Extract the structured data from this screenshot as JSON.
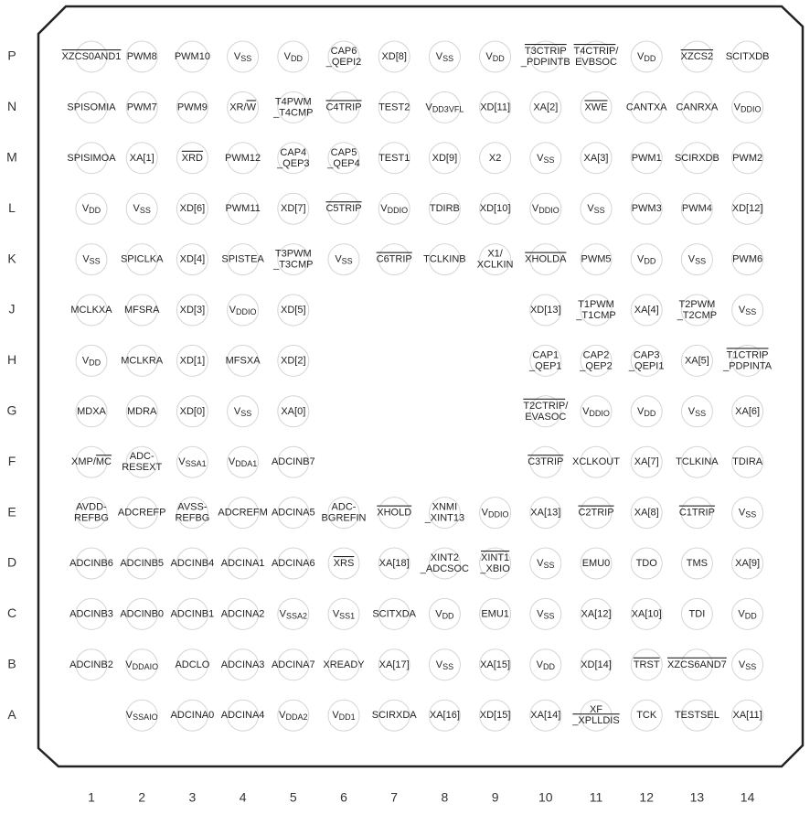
{
  "rows": [
    "P",
    "N",
    "M",
    "L",
    "K",
    "J",
    "H",
    "G",
    "F",
    "E",
    "D",
    "C",
    "B",
    "A"
  ],
  "columns": [
    "1",
    "2",
    "3",
    "4",
    "5",
    "6",
    "7",
    "8",
    "9",
    "10",
    "11",
    "12",
    "13",
    "14"
  ],
  "pins": [
    [
      [
        [
          {
            "over": "XZCS0AND1"
          }
        ]
      ],
      [
        "PWM8"
      ],
      [
        "PWM10"
      ],
      [
        [
          "V",
          {
            "sub": "SS"
          }
        ]
      ],
      [
        [
          "V",
          {
            "sub": "DD"
          }
        ]
      ],
      [
        "CAP6",
        "_QEPI2"
      ],
      [
        "XD[8]"
      ],
      [
        [
          "V",
          {
            "sub": "SS"
          }
        ]
      ],
      [
        [
          "V",
          {
            "sub": "DD"
          }
        ]
      ],
      [
        [
          {
            "over": "T3CTRIP"
          }
        ],
        "_PDPINTB"
      ],
      [
        [
          {
            "over": "T4CTRIP"
          },
          "/"
        ],
        "EVBSOC"
      ],
      [
        [
          "V",
          {
            "sub": "DD"
          }
        ]
      ],
      [
        [
          {
            "over": "XZCS2"
          }
        ]
      ],
      [
        "SCITXDB"
      ]
    ],
    [
      [
        "SPISOMIA"
      ],
      [
        "PWM7"
      ],
      [
        "PWM9"
      ],
      [
        [
          "XR/",
          {
            "over": "W"
          }
        ]
      ],
      [
        "T4PWM",
        "_T4CMP"
      ],
      [
        [
          {
            "over": "C4TRIP"
          }
        ]
      ],
      [
        "TEST2"
      ],
      [
        [
          "V",
          {
            "sub": "DD3VFL"
          }
        ]
      ],
      [
        "XD[11]"
      ],
      [
        "XA[2]"
      ],
      [
        [
          {
            "over": "XWE"
          }
        ]
      ],
      [
        "CANTXA"
      ],
      [
        "CANRXA"
      ],
      [
        [
          "V",
          {
            "sub": "DDIO"
          }
        ]
      ]
    ],
    [
      [
        "SPISIMOA"
      ],
      [
        "XA[1]"
      ],
      [
        [
          {
            "over": "XRD"
          }
        ]
      ],
      [
        "PWM12"
      ],
      [
        "CAP4",
        "_QEP3"
      ],
      [
        "CAP5",
        "_QEP4"
      ],
      [
        "TEST1"
      ],
      [
        "XD[9]"
      ],
      [
        "X2"
      ],
      [
        [
          "V",
          {
            "sub": "SS"
          }
        ]
      ],
      [
        "XA[3]"
      ],
      [
        "PWM1"
      ],
      [
        "SCIRXDB"
      ],
      [
        "PWM2"
      ]
    ],
    [
      [
        [
          "V",
          {
            "sub": "DD"
          }
        ]
      ],
      [
        [
          "V",
          {
            "sub": "SS"
          }
        ]
      ],
      [
        "XD[6]"
      ],
      [
        "PWM11"
      ],
      [
        "XD[7]"
      ],
      [
        [
          {
            "over": "C5TRIP"
          }
        ]
      ],
      [
        [
          "V",
          {
            "sub": "DDIO"
          }
        ]
      ],
      [
        "TDIRB"
      ],
      [
        "XD[10]"
      ],
      [
        [
          "V",
          {
            "sub": "DDIO"
          }
        ]
      ],
      [
        [
          "V",
          {
            "sub": "SS"
          }
        ]
      ],
      [
        "PWM3"
      ],
      [
        "PWM4"
      ],
      [
        "XD[12]"
      ]
    ],
    [
      [
        [
          "V",
          {
            "sub": "SS"
          }
        ]
      ],
      [
        "SPICLKA"
      ],
      [
        "XD[4]"
      ],
      [
        "SPISTEA"
      ],
      [
        "T3PWM",
        "_T3CMP"
      ],
      [
        [
          "V",
          {
            "sub": "SS"
          }
        ]
      ],
      [
        [
          {
            "over": "C6TRIP"
          }
        ]
      ],
      [
        "TCLKINB"
      ],
      [
        "X1/",
        "XCLKIN"
      ],
      [
        [
          {
            "over": "XHOLDA"
          }
        ]
      ],
      [
        "PWM5"
      ],
      [
        [
          "V",
          {
            "sub": "DD"
          }
        ]
      ],
      [
        [
          "V",
          {
            "sub": "SS"
          }
        ]
      ],
      [
        "PWM6"
      ]
    ],
    [
      [
        "MCLKXA"
      ],
      [
        "MFSRA"
      ],
      [
        "XD[3]"
      ],
      [
        [
          "V",
          {
            "sub": "DDIO"
          }
        ]
      ],
      [
        "XD[5]"
      ],
      null,
      null,
      null,
      null,
      [
        "XD[13]"
      ],
      [
        "T1PWM",
        "_T1CMP"
      ],
      [
        "XA[4]"
      ],
      [
        "T2PWM",
        "_T2CMP"
      ],
      [
        [
          "V",
          {
            "sub": "SS"
          }
        ]
      ]
    ],
    [
      [
        [
          "V",
          {
            "sub": "DD"
          }
        ]
      ],
      [
        "MCLKRA"
      ],
      [
        "XD[1]"
      ],
      [
        "MFSXA"
      ],
      [
        "XD[2]"
      ],
      null,
      null,
      null,
      null,
      [
        "CAP1",
        "_QEP1"
      ],
      [
        "CAP2",
        "_QEP2"
      ],
      [
        "CAP3",
        "_QEPI1"
      ],
      [
        "XA[5]"
      ],
      [
        [
          {
            "over": "T1CTRIP"
          }
        ],
        "_PDPINTA"
      ]
    ],
    [
      [
        "MDXA"
      ],
      [
        "MDRA"
      ],
      [
        "XD[0]"
      ],
      [
        [
          "V",
          {
            "sub": "SS"
          }
        ]
      ],
      [
        "XA[0]"
      ],
      null,
      null,
      null,
      null,
      [
        [
          {
            "over": "T2CTRIP"
          },
          "/"
        ],
        "EVASOC"
      ],
      [
        [
          "V",
          {
            "sub": "DDIO"
          }
        ]
      ],
      [
        [
          "V",
          {
            "sub": "DD"
          }
        ]
      ],
      [
        [
          "V",
          {
            "sub": "SS"
          }
        ]
      ],
      [
        "XA[6]"
      ]
    ],
    [
      [
        [
          "XMP/",
          {
            "over": "MC"
          }
        ]
      ],
      [
        "ADC-",
        "RESEXT"
      ],
      [
        [
          "V",
          {
            "sub": "SSA1"
          }
        ]
      ],
      [
        [
          "V",
          {
            "sub": "DDA1"
          }
        ]
      ],
      [
        "ADCINB7"
      ],
      null,
      null,
      null,
      null,
      [
        [
          {
            "over": "C3TRIP"
          }
        ]
      ],
      [
        "XCLKOUT"
      ],
      [
        "XA[7]"
      ],
      [
        "TCLKINA"
      ],
      [
        "TDIRA"
      ]
    ],
    [
      [
        "AVDD-",
        "REFBG"
      ],
      [
        "ADCREFP"
      ],
      [
        "AVSS-",
        "REFBG"
      ],
      [
        "ADCREFM"
      ],
      [
        "ADCINA5"
      ],
      [
        "ADC-",
        "BGREFIN"
      ],
      [
        [
          {
            "over": "XHOLD"
          }
        ]
      ],
      [
        "XNMI",
        "_XINT13"
      ],
      [
        [
          "V",
          {
            "sub": "DDIO"
          }
        ]
      ],
      [
        "XA[13]"
      ],
      [
        [
          {
            "over": "C2TRIP"
          }
        ]
      ],
      [
        "XA[8]"
      ],
      [
        [
          {
            "over": "C1TRIP"
          }
        ]
      ],
      [
        [
          "V",
          {
            "sub": "SS"
          }
        ]
      ]
    ],
    [
      [
        "ADCINB6"
      ],
      [
        "ADCINB5"
      ],
      [
        "ADCINB4"
      ],
      [
        "ADCINA1"
      ],
      [
        "ADCINA6"
      ],
      [
        [
          {
            "over": "XRS"
          }
        ]
      ],
      [
        "XA[18]"
      ],
      [
        "XINT2",
        "_ADCSOC"
      ],
      [
        [
          {
            "over": "XINT1"
          }
        ],
        "_XBIO"
      ],
      [
        [
          "V",
          {
            "sub": "SS"
          }
        ]
      ],
      [
        "EMU0"
      ],
      [
        "TDO"
      ],
      [
        "TMS"
      ],
      [
        "XA[9]"
      ]
    ],
    [
      [
        "ADCINB3"
      ],
      [
        "ADCINB0"
      ],
      [
        "ADCINB1"
      ],
      [
        "ADCINA2"
      ],
      [
        [
          "V",
          {
            "sub": "SSA2"
          }
        ]
      ],
      [
        [
          "V",
          {
            "sub": "SS1"
          }
        ]
      ],
      [
        "SCITXDA"
      ],
      [
        [
          "V",
          {
            "sub": "DD"
          }
        ]
      ],
      [
        "EMU1"
      ],
      [
        [
          "V",
          {
            "sub": "SS"
          }
        ]
      ],
      [
        "XA[12]"
      ],
      [
        "XA[10]"
      ],
      [
        "TDI"
      ],
      [
        [
          "V",
          {
            "sub": "DD"
          }
        ]
      ]
    ],
    [
      [
        "ADCINB2"
      ],
      [
        [
          "V",
          {
            "sub": "DDAIO"
          }
        ]
      ],
      [
        "ADCLO"
      ],
      [
        "ADCINA3"
      ],
      [
        "ADCINA7"
      ],
      [
        "XREADY"
      ],
      [
        "XA[17]"
      ],
      [
        [
          "V",
          {
            "sub": "SS"
          }
        ]
      ],
      [
        "XA[15]"
      ],
      [
        [
          "V",
          {
            "sub": "DD"
          }
        ]
      ],
      [
        "XD[14]"
      ],
      [
        [
          {
            "over": "TRST"
          }
        ]
      ],
      [
        [
          {
            "over": "XZCS6AND7"
          }
        ]
      ],
      [
        [
          "V",
          {
            "sub": "SS"
          }
        ]
      ]
    ],
    [
      null,
      [
        [
          "V",
          {
            "sub": "SSAIO"
          }
        ]
      ],
      [
        "ADCINA0"
      ],
      [
        "ADCINA4"
      ],
      [
        [
          "V",
          {
            "sub": "DDA2"
          }
        ]
      ],
      [
        [
          "V",
          {
            "sub": "DD1"
          }
        ]
      ],
      [
        "SCIRXDA"
      ],
      [
        "XA[16]"
      ],
      [
        "XD[15]"
      ],
      [
        "XA[14]"
      ],
      [
        "XF",
        [
          {
            "over": "_XPLLDIS"
          }
        ]
      ],
      [
        "TCK"
      ],
      [
        "TESTSEL"
      ],
      [
        "XA[11]"
      ]
    ]
  ]
}
